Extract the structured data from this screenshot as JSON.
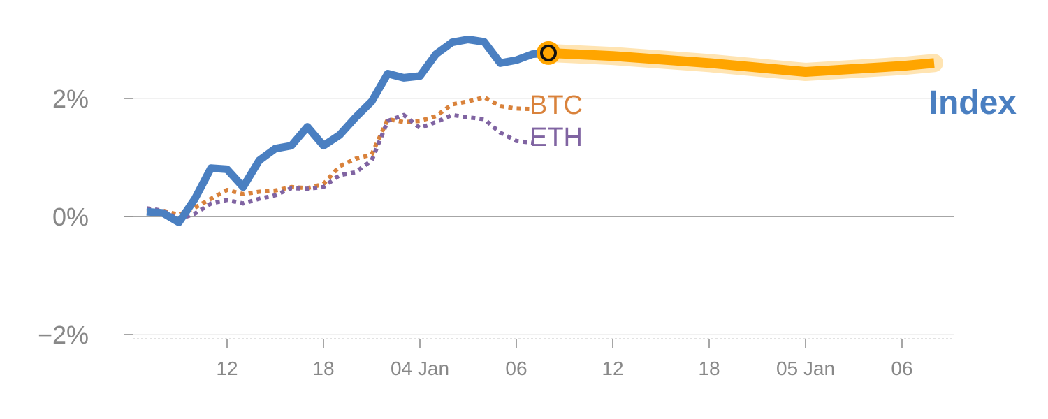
{
  "chart_data": {
    "type": "line",
    "y_unit": "%",
    "ylim": [
      -2,
      3.2
    ],
    "y_ticks": [
      {
        "value": 2,
        "label": "2%"
      },
      {
        "value": 0,
        "label": "0%"
      },
      {
        "value": -2,
        "label": "−2%"
      }
    ],
    "x_ticks": [
      {
        "pos": 5,
        "label": "12"
      },
      {
        "pos": 11,
        "label": "18"
      },
      {
        "pos": 17,
        "label": "04 Jan"
      },
      {
        "pos": 23,
        "label": "06"
      },
      {
        "pos": 29,
        "label": "12"
      },
      {
        "pos": 35,
        "label": "18"
      },
      {
        "pos": 41,
        "label": "05 Jan"
      },
      {
        "pos": 47,
        "label": "06"
      }
    ],
    "grid": true,
    "series": [
      {
        "name": "Index",
        "color": "#4a7fc1",
        "style": "solid",
        "x": [
          0,
          1,
          2,
          3,
          4,
          5,
          6,
          7,
          8,
          9,
          10,
          11,
          12,
          13,
          14,
          15,
          16,
          17,
          18,
          19,
          20,
          21,
          22,
          23,
          24,
          25
        ],
        "values": [
          0.08,
          0.06,
          -0.1,
          0.3,
          0.82,
          0.8,
          0.5,
          0.95,
          1.15,
          1.2,
          1.52,
          1.2,
          1.38,
          1.68,
          1.95,
          2.42,
          2.35,
          2.38,
          2.75,
          2.95,
          3.0,
          2.96,
          2.6,
          2.65,
          2.75,
          2.77
        ]
      },
      {
        "name": "BTC",
        "color": "#d9823b",
        "style": "dotted",
        "x": [
          0,
          1,
          2,
          3,
          4,
          5,
          6,
          7,
          8,
          9,
          10,
          11,
          12,
          13,
          14,
          15,
          16,
          17,
          18,
          19,
          20,
          21,
          22,
          23,
          24
        ],
        "values": [
          0.12,
          0.1,
          0.03,
          0.15,
          0.3,
          0.45,
          0.38,
          0.42,
          0.44,
          0.5,
          0.48,
          0.55,
          0.85,
          0.98,
          1.05,
          1.65,
          1.6,
          1.62,
          1.7,
          1.9,
          1.95,
          2.02,
          1.87,
          1.83,
          1.82
        ]
      },
      {
        "name": "ETH",
        "color": "#8064a2",
        "style": "dotted",
        "x": [
          0,
          1,
          2,
          3,
          4,
          5,
          6,
          7,
          8,
          9,
          10,
          11,
          12,
          13,
          14,
          15,
          16,
          17,
          18,
          19,
          20,
          21,
          22,
          23,
          24
        ],
        "values": [
          0.14,
          0.1,
          -0.05,
          0.05,
          0.22,
          0.28,
          0.22,
          0.3,
          0.36,
          0.48,
          0.47,
          0.5,
          0.7,
          0.75,
          0.95,
          1.62,
          1.72,
          1.5,
          1.6,
          1.72,
          1.68,
          1.65,
          1.42,
          1.28,
          1.25
        ]
      },
      {
        "name": "Index",
        "color": "#ffa500",
        "style": "thick-forecast",
        "x": [
          25,
          29,
          35,
          41,
          47,
          49
        ],
        "values": [
          2.77,
          2.72,
          2.6,
          2.45,
          2.55,
          2.6
        ]
      }
    ],
    "labels": {
      "btc": "BTC",
      "eth": "ETH",
      "index": "Index"
    },
    "colors": {
      "index": "#4a7fc1",
      "btc": "#d9823b",
      "eth": "#8064a2",
      "forecast": "#ffa500"
    }
  }
}
